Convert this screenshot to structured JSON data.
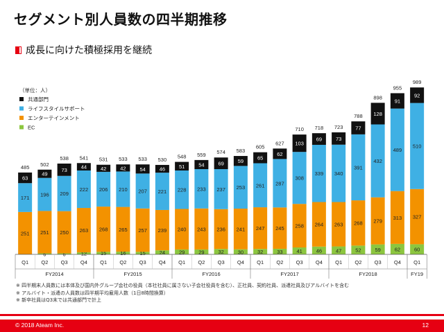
{
  "title": "セグメント別人員数の四半期推移",
  "subtitle": "成長に向けた積極採用を継続",
  "footer": {
    "copyright": "© 2018 Ateam Inc.",
    "page": "12"
  },
  "notes": [
    "※ 四半期末人員数には本体及び国内外グループ会社の役員（本社社員に属さない子会社役員を含む）、正社員、契約社員、派遣社員及びアルバイトを含む",
    "※ アルバイト・派遣の人員数は四半期平均雇用人数（1日8時間換算）",
    "※ 新卒社員はQ3末では共通部門で計上"
  ],
  "colors": {
    "accent": "#e60012",
    "common": "#111111",
    "lifestyle": "#3fb0e4",
    "entertainment": "#f39200",
    "ec": "#8cc63f"
  },
  "chart_data": {
    "type": "bar",
    "stacked": true,
    "unit_label": "（単位：人）",
    "categories": [
      "Q1",
      "Q2",
      "Q3",
      "Q4",
      "Q1",
      "Q2",
      "Q3",
      "Q4",
      "Q1",
      "Q2",
      "Q3",
      "Q4",
      "Q1",
      "Q2",
      "Q3",
      "Q4",
      "Q1",
      "Q2",
      "Q3",
      "Q4",
      "Q1"
    ],
    "groups": [
      {
        "label": "FY2014",
        "count": 4
      },
      {
        "label": "FY2015",
        "count": 4
      },
      {
        "label": "FY2016",
        "count": 4
      },
      {
        "label": "FY2017",
        "count": 4
      },
      {
        "label": "FY2018",
        "count": 4
      },
      {
        "label": "FY19",
        "count": 1
      }
    ],
    "series": [
      {
        "name": "EC",
        "color": "#8cc63f",
        "values": [
          0,
          6,
          6,
          12,
          15,
          16,
          15,
          24,
          29,
          29,
          32,
          30,
          32,
          33,
          41,
          46,
          47,
          52,
          59,
          62,
          60
        ]
      },
      {
        "name": "エンターテインメント",
        "color": "#f39200",
        "values": [
          251,
          251,
          250,
          263,
          268,
          265,
          257,
          239,
          240,
          243,
          236,
          241,
          247,
          245,
          258,
          264,
          263,
          268,
          279,
          313,
          327
        ]
      },
      {
        "name": "ライフスタイルサポート",
        "color": "#3fb0e4",
        "values": [
          171,
          196,
          209,
          222,
          206,
          210,
          207,
          221,
          228,
          233,
          237,
          253,
          261,
          287,
          308,
          339,
          340,
          391,
          432,
          489,
          510
        ]
      },
      {
        "name": "共通部門",
        "color": "#111111",
        "values": [
          63,
          49,
          73,
          44,
          42,
          42,
          54,
          46,
          51,
          54,
          69,
          59,
          65,
          62,
          103,
          69,
          73,
          77,
          128,
          91,
          92
        ]
      }
    ],
    "totals": [
      485,
      502,
      538,
      541,
      531,
      533,
      533,
      530,
      548,
      559,
      574,
      583,
      605,
      627,
      710,
      718,
      723,
      788,
      898,
      955,
      989
    ],
    "legend": [
      "共通部門",
      "ライフスタイルサポート",
      "エンターテインメント",
      "EC"
    ],
    "legend_position": "top-left",
    "ylim": [
      0,
      1000
    ],
    "grid": false
  }
}
